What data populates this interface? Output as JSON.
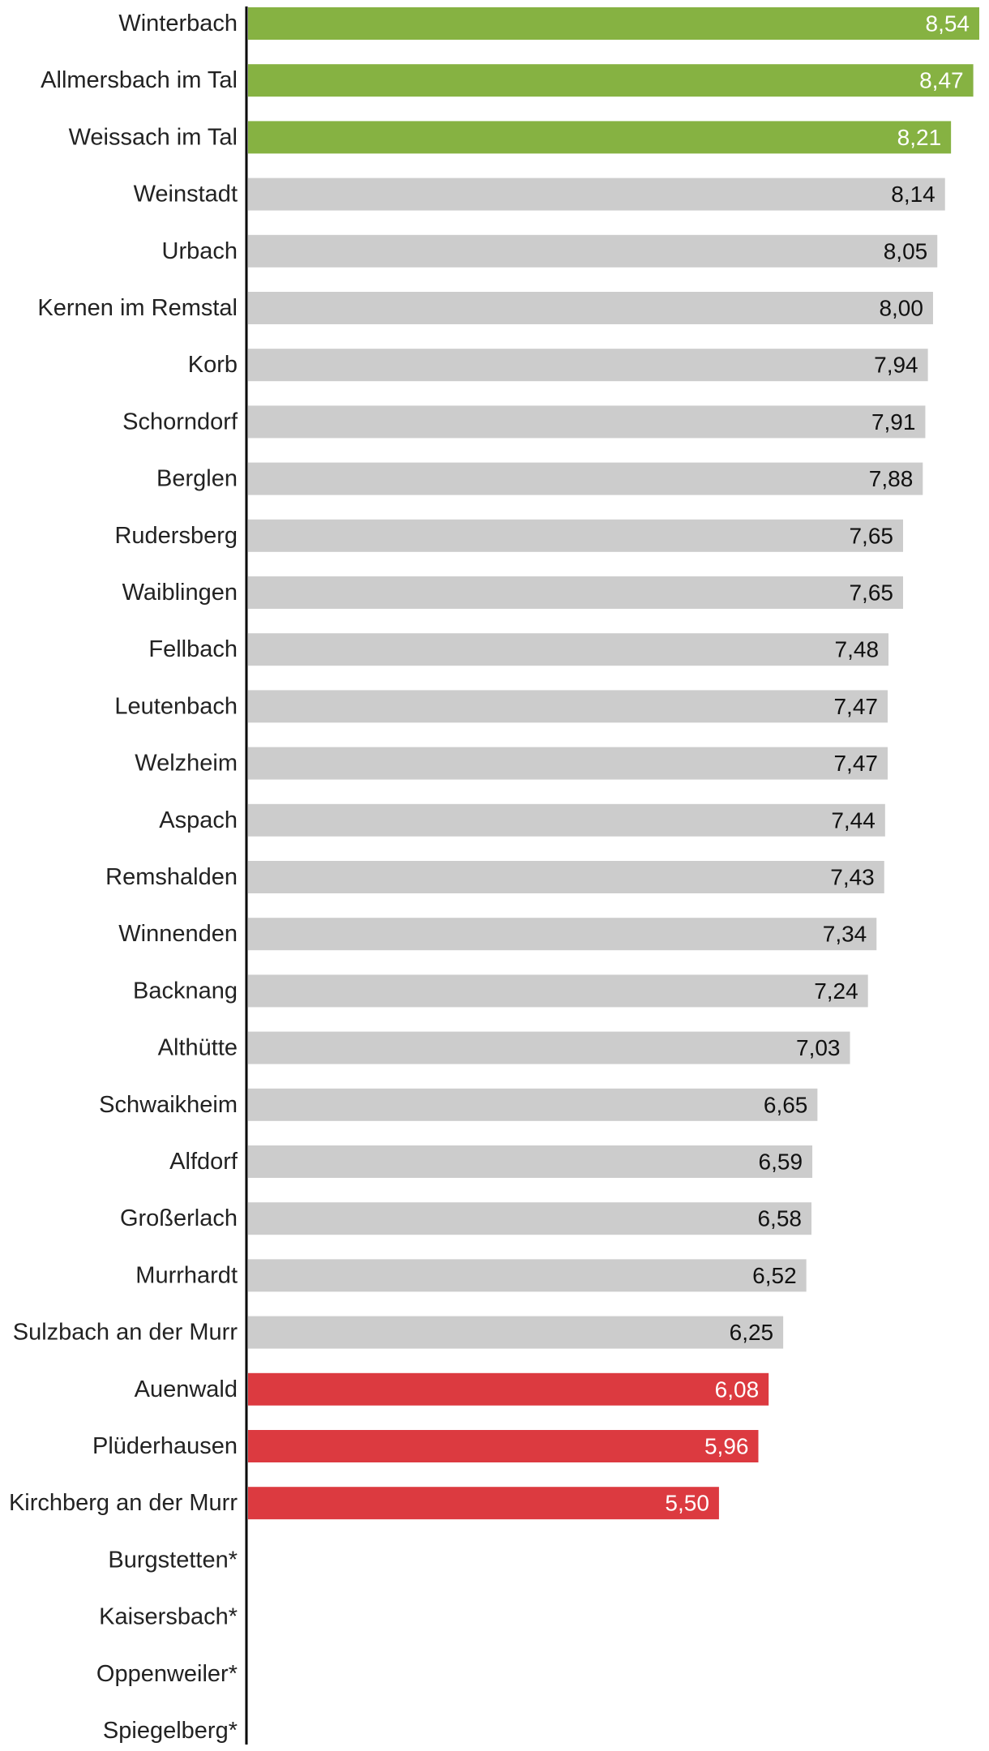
{
  "chart_data": {
    "type": "bar",
    "orientation": "horizontal",
    "title": "",
    "xlabel": "",
    "ylabel": "",
    "xlim": [
      0,
      8.54
    ],
    "grid": false,
    "legend": "none",
    "colors": {
      "top": "#86b242",
      "middle": "#cccccc",
      "bottom": "#dc3a40",
      "axis": "#000000",
      "label_light": "#ffffff",
      "label_dark": "#111111"
    },
    "categories": [
      "Winterbach",
      "Allmersbach im Tal",
      "Weissach im Tal",
      "Weinstadt",
      "Urbach",
      "Kernen im Remstal",
      "Korb",
      "Schorndorf",
      "Berglen",
      "Rudersberg",
      "Waiblingen",
      "Fellbach",
      "Leutenbach",
      "Welzheim",
      "Aspach",
      "Remshalden",
      "Winnenden",
      "Backnang",
      "Althütte",
      "Schwaikheim",
      "Alfdorf",
      "Großerlach",
      "Murrhardt",
      "Sulzbach an der Murr",
      "Auenwald",
      "Plüderhausen",
      "Kirchberg an der Murr",
      "Burgstetten*",
      "Kaisersbach*",
      "Oppenweiler*",
      "Spiegelberg*"
    ],
    "values": [
      8.54,
      8.47,
      8.21,
      8.14,
      8.05,
      8.0,
      7.94,
      7.91,
      7.88,
      7.65,
      7.65,
      7.48,
      7.47,
      7.47,
      7.44,
      7.43,
      7.34,
      7.24,
      7.03,
      6.65,
      6.59,
      6.58,
      6.52,
      6.25,
      6.08,
      5.96,
      5.5,
      null,
      null,
      null,
      null
    ],
    "value_labels": [
      "8,54",
      "8,47",
      "8,21",
      "8,14",
      "8,05",
      "8,00",
      "7,94",
      "7,91",
      "7,88",
      "7,65",
      "7,65",
      "7,48",
      "7,47",
      "7,47",
      "7,44",
      "7,43",
      "7,34",
      "7,24",
      "7,03",
      "6,65",
      "6,59",
      "6,58",
      "6,52",
      "6,25",
      "6,08",
      "5,96",
      "5,50",
      "",
      "",
      "",
      ""
    ],
    "groups": [
      "top",
      "top",
      "top",
      "middle",
      "middle",
      "middle",
      "middle",
      "middle",
      "middle",
      "middle",
      "middle",
      "middle",
      "middle",
      "middle",
      "middle",
      "middle",
      "middle",
      "middle",
      "middle",
      "middle",
      "middle",
      "middle",
      "middle",
      "middle",
      "bottom",
      "bottom",
      "bottom",
      "none",
      "none",
      "none",
      "none"
    ]
  }
}
